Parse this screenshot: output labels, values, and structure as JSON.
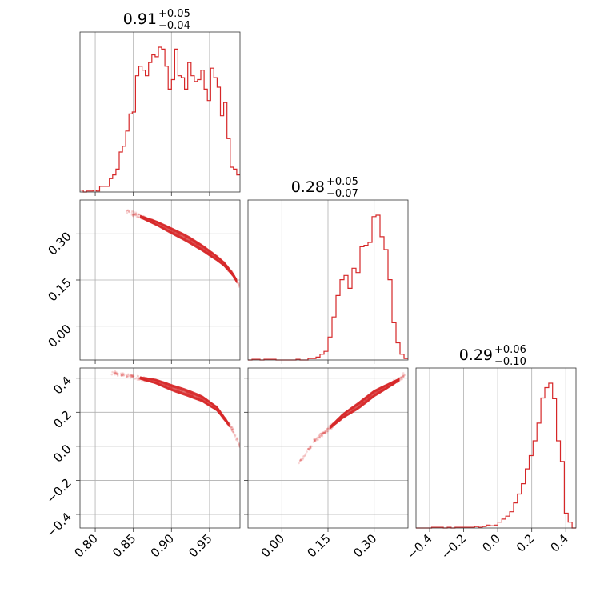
{
  "chart_data": {
    "type": "corner",
    "color": "#d62728",
    "parameters": [
      {
        "title": {
          "median": "0.91",
          "plus": "+0.05",
          "minus": "−0.04"
        },
        "range": [
          0.78,
          0.99
        ],
        "ticks": [
          0.8,
          0.85,
          0.9,
          0.95
        ],
        "tick_labels": [
          "0.80",
          "0.85",
          "0.90",
          "0.95"
        ],
        "hist_bins": [
          0.78,
          0.99
        ],
        "hist_counts": [
          2,
          0,
          1,
          1,
          2,
          1,
          6,
          6,
          6,
          14,
          18,
          24,
          42,
          48,
          64,
          82,
          84,
          122,
          132,
          128,
          122,
          136,
          144,
          142,
          152,
          150,
          132,
          108,
          118,
          150,
          122,
          120,
          108,
          136,
          122,
          116,
          118,
          128,
          108,
          96,
          130,
          120,
          110,
          80,
          94,
          56,
          26,
          24,
          18
        ]
      },
      {
        "title": {
          "median": "0.28",
          "plus": "+0.05",
          "minus": "−0.07"
        },
        "range": [
          -0.11,
          0.41
        ],
        "ticks": [
          0.0,
          0.15,
          0.3
        ],
        "tick_labels": [
          "0.00",
          "0.15",
          "0.30"
        ],
        "hist_bins": [
          -0.11,
          0.41
        ],
        "hist_counts": [
          0,
          1,
          1,
          0,
          1,
          1,
          1,
          0,
          0,
          0,
          0,
          0,
          1,
          0,
          0,
          2,
          2,
          4,
          8,
          12,
          32,
          60,
          90,
          112,
          118,
          100,
          128,
          122,
          158,
          160,
          164,
          200,
          202,
          172,
          154,
          112,
          52,
          24,
          8,
          2
        ]
      },
      {
        "title": {
          "median": "0.29",
          "plus": "+0.06",
          "minus": "−0.10"
        },
        "range": [
          -0.48,
          0.46
        ],
        "ticks": [
          -0.4,
          -0.2,
          0.0,
          0.2,
          0.4
        ],
        "tick_labels": [
          "−0.4",
          "−0.2",
          "0.0",
          "0.2",
          "0.4"
        ],
        "hist_bins": [
          -0.48,
          0.46
        ],
        "hist_counts": [
          0,
          0,
          0,
          0,
          1,
          1,
          1,
          0,
          1,
          0,
          1,
          1,
          1,
          1,
          1,
          2,
          1,
          2,
          4,
          3,
          4,
          8,
          12,
          16,
          22,
          34,
          46,
          60,
          80,
          98,
          118,
          142,
          176,
          190,
          196,
          175,
          118,
          90,
          20,
          8,
          0
        ]
      }
    ],
    "pairs": [
      {
        "x_param": 0,
        "y_param": 1,
        "ridge_x": [
          0.84,
          0.86,
          0.88,
          0.9,
          0.92,
          0.94,
          0.96,
          0.97,
          0.98,
          0.99
        ],
        "ridge_y": [
          0.375,
          0.355,
          0.335,
          0.31,
          0.285,
          0.255,
          0.22,
          0.2,
          0.17,
          0.13
        ],
        "contour_range": [
          0.86,
          0.985
        ]
      },
      {
        "x_param": 0,
        "y_param": 2,
        "ridge_x": [
          0.82,
          0.85,
          0.88,
          0.9,
          0.92,
          0.94,
          0.96,
          0.97,
          0.98,
          0.99
        ],
        "ridge_y": [
          0.43,
          0.41,
          0.38,
          0.345,
          0.315,
          0.28,
          0.22,
          0.16,
          0.1,
          0.0
        ],
        "contour_range": [
          0.86,
          0.975
        ]
      },
      {
        "x_param": 1,
        "y_param": 2,
        "ridge_x": [
          0.05,
          0.1,
          0.15,
          0.2,
          0.25,
          0.3,
          0.35,
          0.38,
          0.4
        ],
        "ridge_y": [
          -0.12,
          0.02,
          0.1,
          0.18,
          0.24,
          0.31,
          0.36,
          0.39,
          0.42
        ],
        "contour_range": [
          0.16,
          0.38
        ]
      }
    ]
  }
}
